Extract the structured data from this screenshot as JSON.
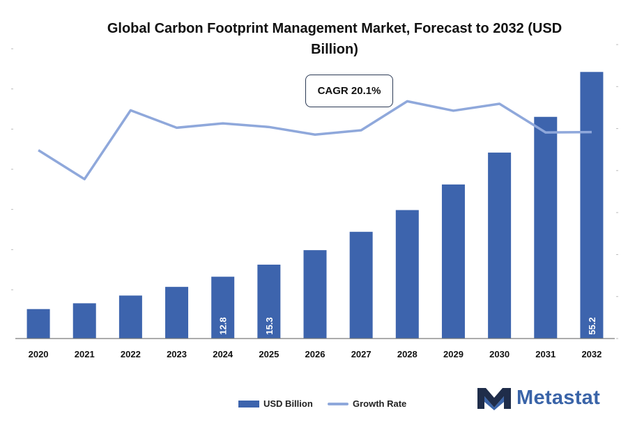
{
  "chart_data": {
    "type": "bar",
    "title": "Global Carbon Footprint Management Market, Forecast to 2032 (USD Billion)",
    "categories": [
      "2020",
      "2021",
      "2022",
      "2023",
      "2024",
      "2025",
      "2026",
      "2027",
      "2028",
      "2029",
      "2030",
      "2031",
      "2032"
    ],
    "series": [
      {
        "name": "USD Billion",
        "type": "bar",
        "values": [
          6.1,
          7.3,
          8.9,
          10.7,
          12.8,
          15.3,
          18.3,
          22.1,
          26.6,
          31.9,
          38.5,
          45.9,
          55.2
        ],
        "data_labels": {
          "4": "12.8",
          "5": "15.3",
          "12": "55.2"
        }
      },
      {
        "name": "Growth Rate",
        "type": "line",
        "values": [
          12.0,
          4.0,
          23.0,
          18.2,
          19.4,
          18.4,
          16.3,
          17.5,
          25.5,
          22.9,
          24.8,
          16.9,
          17.0
        ]
      }
    ],
    "ylim": [
      0,
      60
    ],
    "y2lim": [
      -40,
      40
    ],
    "legend_position": "bottom-center",
    "grid": false,
    "annotation": "CAGR 20.1%"
  },
  "colors": {
    "bar": "#3d64ad",
    "line": "#8fa8db",
    "axis": "#555555",
    "brand": "#3a64a8"
  },
  "brand": {
    "name": "Metastat"
  }
}
